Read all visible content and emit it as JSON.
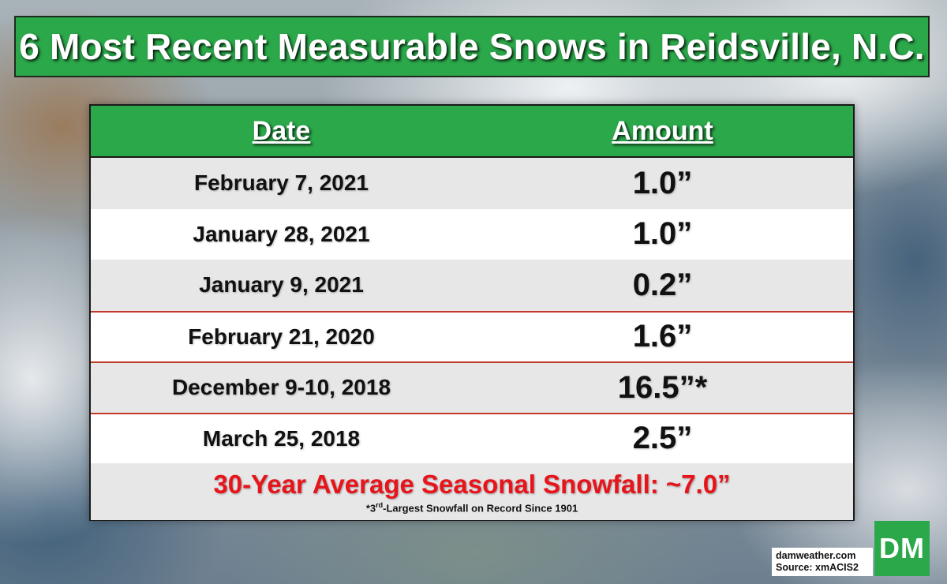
{
  "title": "6 Most Recent Measurable Snows in Reidsville, N.C.",
  "table": {
    "headers": {
      "date": "Date",
      "amount": "Amount"
    },
    "rows": [
      {
        "date": "February 7, 2021",
        "amount": "1.0”"
      },
      {
        "date": "January 28, 2021",
        "amount": "1.0”"
      },
      {
        "date": "January 9, 2021",
        "amount": "0.2”"
      },
      {
        "date": "February 21, 2020",
        "amount": "1.6”"
      },
      {
        "date": "December 9-10, 2018",
        "amount": "16.5”*"
      },
      {
        "date": "March 25, 2018",
        "amount": "2.5”"
      }
    ],
    "average": "30-Year Average Seasonal Snowfall: ~7.0”",
    "footnote": {
      "prefix": "*3",
      "superscript": "rd",
      "suffix": "-Largest Snowfall on Record Since 1901"
    }
  },
  "credits": {
    "site": "damweather.com",
    "source": "Source: xmACIS2"
  },
  "logo": "DM",
  "colors": {
    "banner_green": "#2ba84a",
    "average_red": "#e8141b",
    "divider_red": "#c0392b"
  }
}
